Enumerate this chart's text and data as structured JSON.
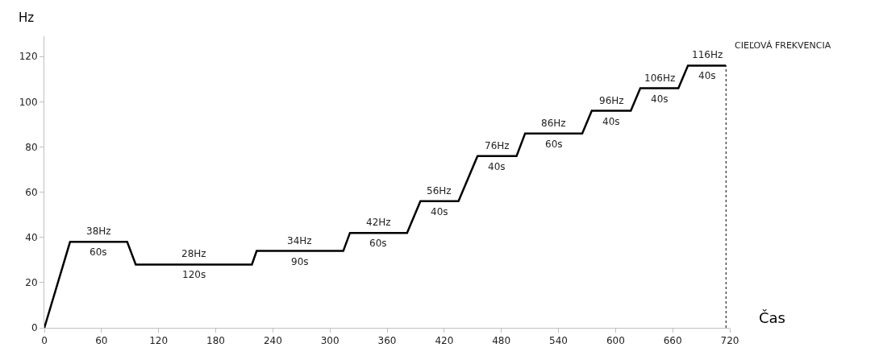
{
  "chart_data": {
    "type": "line",
    "xlabel": "Čas",
    "ylabel": "Hz",
    "x": [
      0,
      27,
      87,
      96,
      218,
      223,
      314,
      321,
      381,
      395,
      435,
      455,
      496,
      505,
      565,
      575,
      616,
      626,
      666,
      676,
      716
    ],
    "series": [
      {
        "color": "#000000",
        "values": [
          0,
          38,
          38,
          28,
          28,
          34,
          34,
          42,
          42,
          56,
          56,
          76,
          76,
          86,
          86,
          96,
          96,
          106,
          106,
          116,
          116
        ]
      }
    ],
    "xlim": [
      0,
      720
    ],
    "xticks": [
      0,
      60,
      120,
      180,
      240,
      300,
      360,
      420,
      480,
      540,
      600,
      660,
      720
    ],
    "ylim": [
      0,
      129
    ],
    "yticks": [
      0,
      20,
      40,
      60,
      80,
      100,
      120
    ],
    "legend": false,
    "marker": "none",
    "line_style": "solid",
    "ref_lines": [
      {
        "axis": "x",
        "value": 716,
        "color": "#000000",
        "line_style": "dotted"
      }
    ],
    "annotations": [
      "38Hz",
      "60s",
      "28Hz",
      "120s",
      "34Hz",
      "90s",
      "42Hz",
      "60s",
      "56Hz",
      "40s",
      "76Hz",
      "40s",
      "86Hz",
      "60s",
      "96Hz",
      "40s",
      "106Hz",
      "40s",
      "116Hz",
      "40s",
      "CIEĽOVÁ FREKVENCIA"
    ]
  }
}
